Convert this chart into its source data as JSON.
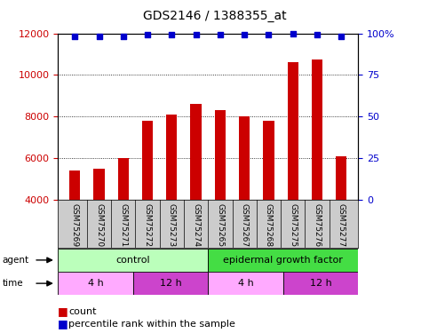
{
  "title": "GDS2146 / 1388355_at",
  "samples": [
    "GSM75269",
    "GSM75270",
    "GSM75271",
    "GSM75272",
    "GSM75273",
    "GSM75274",
    "GSM75265",
    "GSM75267",
    "GSM75268",
    "GSM75275",
    "GSM75276",
    "GSM75277"
  ],
  "counts": [
    5400,
    5500,
    6000,
    7800,
    8100,
    8600,
    8300,
    8000,
    7800,
    10600,
    10750,
    6100
  ],
  "percentiles": [
    98,
    98,
    98,
    99,
    99,
    99,
    99,
    99,
    99,
    100,
    99,
    98
  ],
  "bar_color": "#cc0000",
  "dot_color": "#0000cc",
  "ylim_left": [
    4000,
    12000
  ],
  "ylim_right": [
    0,
    100
  ],
  "yticks_left": [
    4000,
    6000,
    8000,
    10000,
    12000
  ],
  "yticks_right": [
    0,
    25,
    50,
    75,
    100
  ],
  "agent_labels": [
    {
      "text": "control",
      "start": 0,
      "end": 6,
      "color": "#bbffbb"
    },
    {
      "text": "epidermal growth factor",
      "start": 6,
      "end": 12,
      "color": "#44dd44"
    }
  ],
  "time_labels": [
    {
      "text": "4 h",
      "start": 0,
      "end": 3,
      "color": "#ffaaff"
    },
    {
      "text": "12 h",
      "start": 3,
      "end": 6,
      "color": "#cc44cc"
    },
    {
      "text": "4 h",
      "start": 6,
      "end": 9,
      "color": "#ffaaff"
    },
    {
      "text": "12 h",
      "start": 9,
      "end": 12,
      "color": "#cc44cc"
    }
  ],
  "grid_color": "#000000",
  "plot_bg": "#ffffff",
  "label_bg": "#cccccc"
}
